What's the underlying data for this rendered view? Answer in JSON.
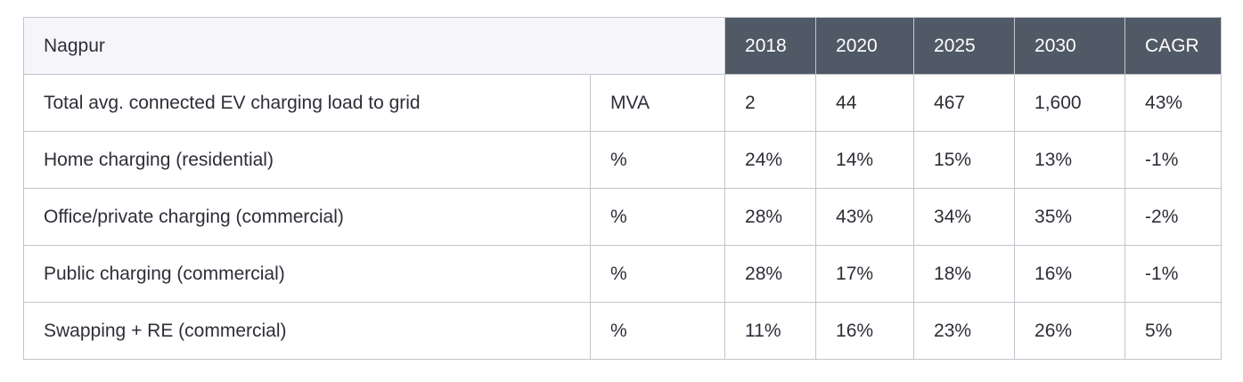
{
  "table": {
    "city": "Nagpur",
    "years": [
      "2018",
      "2020",
      "2025",
      "2030"
    ],
    "cagr_label": "CAGR",
    "rows": [
      {
        "label": "Total avg. connected EV charging load to grid",
        "unit": "MVA",
        "values": [
          "2",
          "44",
          "467",
          "1,600"
        ],
        "cagr": "43%"
      },
      {
        "label": "Home charging (residential)",
        "unit": "%",
        "values": [
          "24%",
          "14%",
          "15%",
          "13%"
        ],
        "cagr": "-1%"
      },
      {
        "label": "Office/private charging (commercial)",
        "unit": "%",
        "values": [
          "28%",
          "43%",
          "34%",
          "35%"
        ],
        "cagr": "-2%"
      },
      {
        "label": "Public charging (commercial)",
        "unit": "%",
        "values": [
          "28%",
          "17%",
          "18%",
          "16%"
        ],
        "cagr": "-1%"
      },
      {
        "label": "Swapping + RE (commercial)",
        "unit": "%",
        "values": [
          "11%",
          "16%",
          "23%",
          "26%"
        ],
        "cagr": "5%"
      }
    ]
  },
  "colors": {
    "header_dark": "#505a66",
    "header_light": "#f6f6fa",
    "border": "#c4c4cd",
    "text": "#2e2e38"
  }
}
